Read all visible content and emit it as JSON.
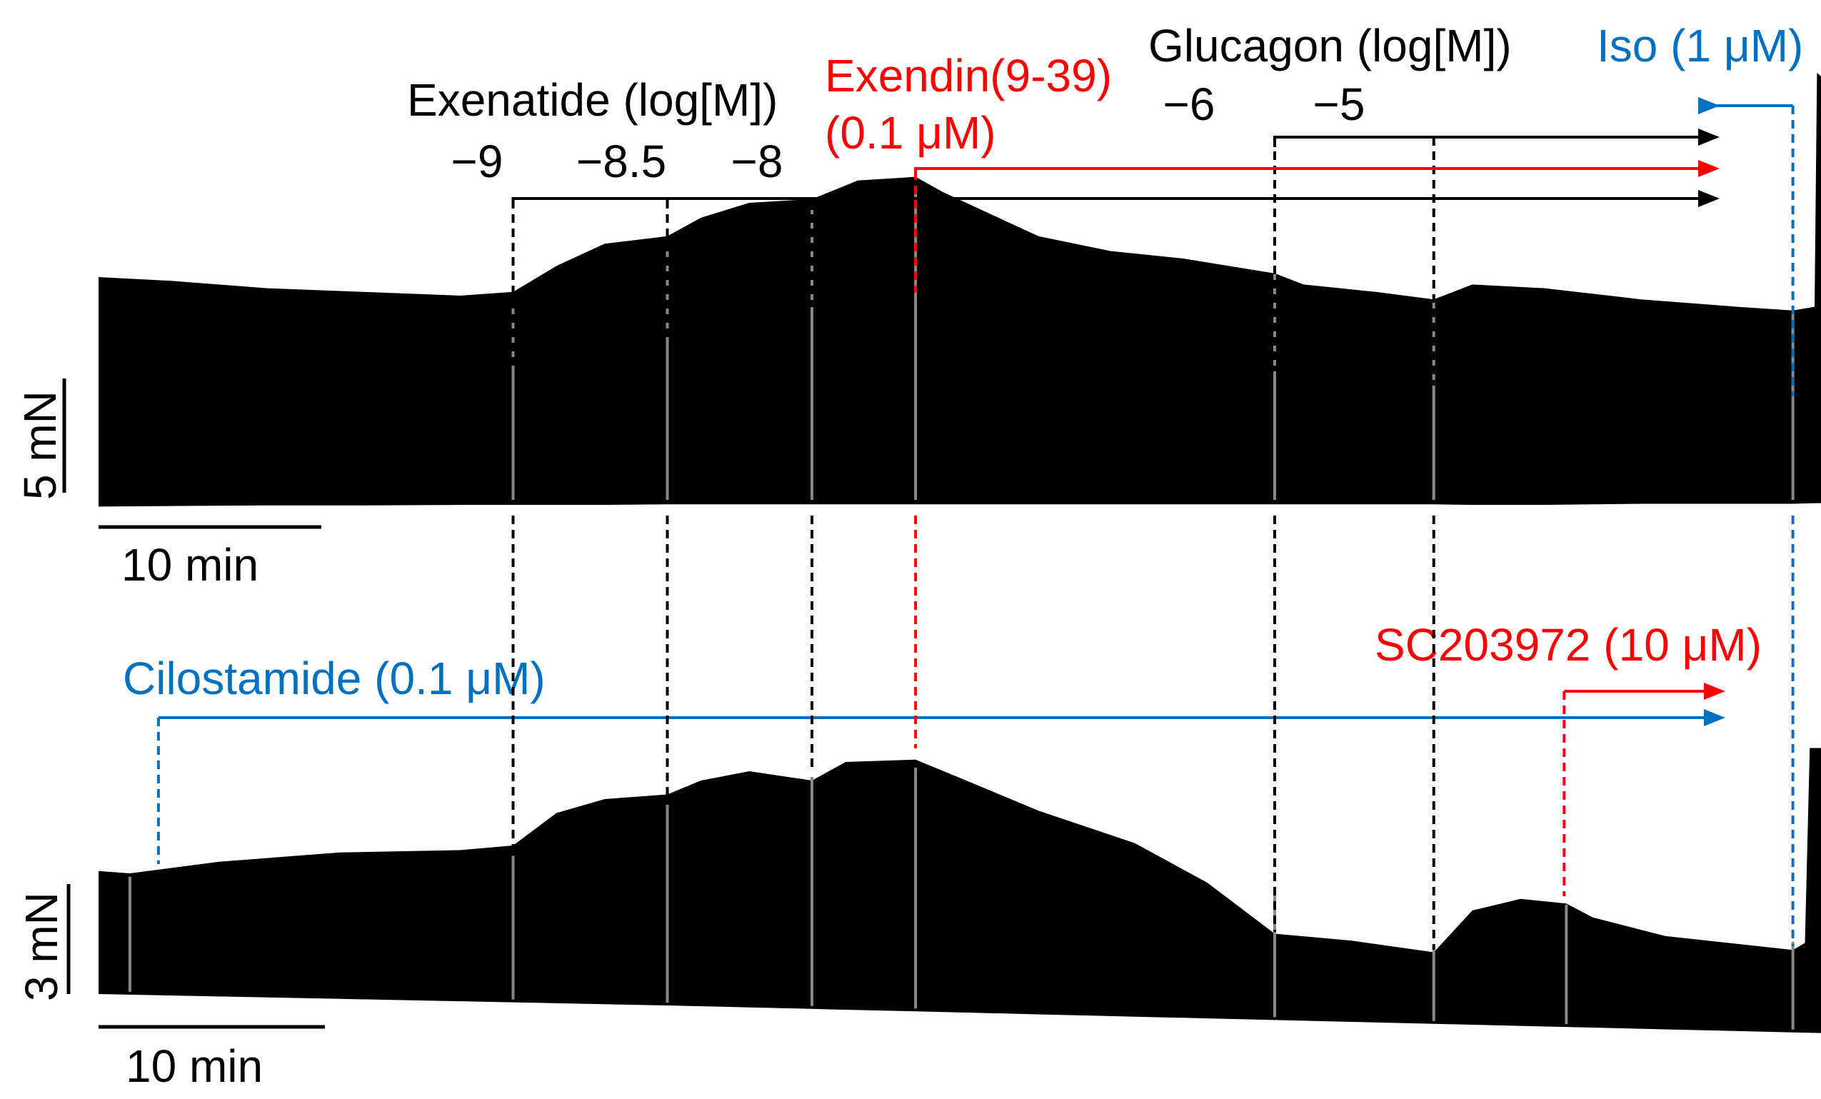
{
  "chart_data": [
    {
      "type": "area",
      "title": "",
      "xlabel": "",
      "ylabel": "",
      "scale_bars": {
        "force": "5 mN",
        "time": "10 min"
      },
      "colors": {
        "trace": "#000000",
        "exendin": "#ff0000",
        "iso": "#0070c0",
        "marker": "#000000"
      },
      "treatments": [
        {
          "name": "Exenatide (log[M])",
          "color": "#000000",
          "additions": [
            {
              "label": "−9",
              "t": 17.2
            },
            {
              "label": "−8.5",
              "t": 23.6
            },
            {
              "label": "−8",
              "t": 29.6
            }
          ]
        },
        {
          "name": "Exendin(9-39)",
          "name2": "(0.1 μM)",
          "color": "#ff0000",
          "additions": [
            {
              "label": "",
              "t": 33.9
            }
          ]
        },
        {
          "name": "Glucagon (log[M])",
          "color": "#000000",
          "additions": [
            {
              "label": "−6",
              "t": 48.8
            },
            {
              "label": "−5",
              "t": 55.4
            }
          ]
        },
        {
          "name": "Iso (1 μM)",
          "color": "#0070c0",
          "additions": [
            {
              "label": "",
              "t": 70.3
            }
          ]
        }
      ],
      "x_range_min": [
        0,
        72.2
      ],
      "trace_points": [
        [
          0,
          6.0,
          1.2
        ],
        [
          3,
          5.9,
          1.1
        ],
        [
          7,
          5.7,
          1.0
        ],
        [
          11,
          5.6,
          1.0
        ],
        [
          15,
          5.5,
          0.9
        ],
        [
          17.2,
          5.6,
          0.9
        ],
        [
          19,
          6.3,
          0.9
        ],
        [
          21,
          6.9,
          0.9
        ],
        [
          23.6,
          7.1,
          0.8
        ],
        [
          25,
          7.6,
          0.8
        ],
        [
          27,
          8.0,
          0.8
        ],
        [
          29.6,
          8.1,
          0.8
        ],
        [
          31.5,
          8.6,
          0.8
        ],
        [
          33.9,
          8.7,
          0.8
        ],
        [
          35,
          8.3,
          0.8
        ],
        [
          37,
          7.7,
          0.8
        ],
        [
          39,
          7.1,
          0.8
        ],
        [
          42,
          6.7,
          0.8
        ],
        [
          45,
          6.5,
          0.8
        ],
        [
          48.8,
          6.1,
          0.8
        ],
        [
          50,
          5.8,
          0.8
        ],
        [
          53,
          5.6,
          0.8
        ],
        [
          55.4,
          5.4,
          0.8
        ],
        [
          57,
          5.8,
          0.9
        ],
        [
          60,
          5.7,
          0.9
        ],
        [
          64,
          5.4,
          0.7
        ],
        [
          68,
          5.2,
          0.7
        ],
        [
          70.3,
          5.1,
          0.7
        ],
        [
          71.2,
          5.2,
          0.6
        ],
        [
          71.3,
          11.5,
          0.6
        ],
        [
          72.2,
          11.0,
          0.6
        ]
      ]
    },
    {
      "type": "area",
      "title": "",
      "xlabel": "",
      "ylabel": "",
      "scale_bars": {
        "force": "3 mN",
        "time": "10 min"
      },
      "colors": {
        "trace": "#000000",
        "cilostamide": "#0070c0",
        "sc": "#ff0000",
        "marker": "#000000"
      },
      "treatments": [
        {
          "name": "Cilostamide (0.1 μM)",
          "color": "#0070c0",
          "additions": [
            {
              "label": "",
              "t": 1.3
            }
          ]
        },
        {
          "name": "SC203972 (10 μM)",
          "color": "#ff0000",
          "additions": [
            {
              "label": "",
              "t": 60.9
            }
          ]
        }
      ],
      "shared_additions_t": [
        17.2,
        23.6,
        29.6,
        33.9,
        48.8,
        55.4,
        70.3
      ],
      "trace_points": [
        [
          0,
          5.3,
          0.0
        ],
        [
          1.3,
          5.2,
          0.0
        ],
        [
          5,
          5.7,
          0.0
        ],
        [
          10,
          6.1,
          0.0
        ],
        [
          15,
          6.2,
          0.0
        ],
        [
          17.2,
          6.4,
          0.0
        ],
        [
          19,
          7.8,
          0.0
        ],
        [
          21,
          8.4,
          0.0
        ],
        [
          23.6,
          8.6,
          0.0
        ],
        [
          25,
          9.2,
          0.0
        ],
        [
          27,
          9.6,
          0.0
        ],
        [
          29.6,
          9.2,
          0.0
        ],
        [
          31,
          10.0,
          0.0
        ],
        [
          33.9,
          10.1,
          0.0
        ],
        [
          36,
          9.2,
          0.0
        ],
        [
          39,
          7.9,
          0.0
        ],
        [
          43,
          6.5,
          0.0
        ],
        [
          46,
          4.8,
          0.0
        ],
        [
          48.8,
          2.6,
          0.0
        ],
        [
          52,
          2.3,
          0.0
        ],
        [
          55.4,
          1.8,
          0.0
        ],
        [
          57,
          3.6,
          0.0
        ],
        [
          59,
          4.1,
          0.0
        ],
        [
          60.9,
          3.9,
          0.0
        ],
        [
          62,
          3.3,
          0.0
        ],
        [
          65,
          2.5,
          0.0
        ],
        [
          70.3,
          1.9,
          0.0
        ],
        [
          70.8,
          2.2,
          0.0
        ],
        [
          71.0,
          10.6,
          0.0
        ],
        [
          72.2,
          10.6,
          0.0
        ]
      ],
      "baseline_points": [
        [
          0,
          0.0
        ],
        [
          24,
          -0.5
        ],
        [
          48,
          -1.1
        ],
        [
          72.2,
          -1.7
        ]
      ]
    }
  ]
}
